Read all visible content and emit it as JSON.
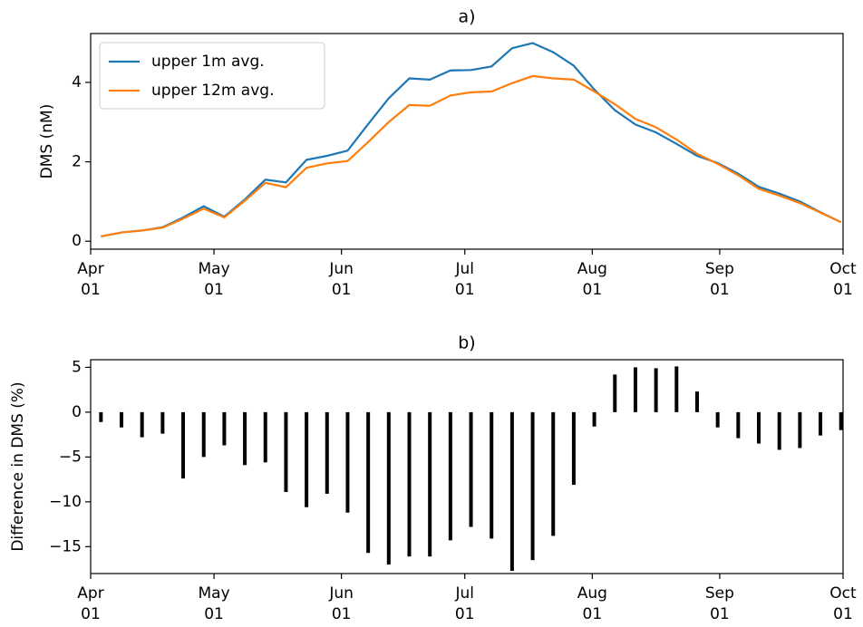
{
  "chart_data": [
    {
      "type": "line",
      "title": "a)",
      "ylabel": "DMS (nM)",
      "x": [
        2.5,
        7.5,
        12.5,
        17.5,
        22.5,
        27.5,
        32.5,
        37.5,
        42.5,
        47.5,
        52.5,
        57.5,
        62.5,
        67.5,
        72.5,
        77.5,
        82.5,
        87.5,
        92.5,
        97.5,
        102.5,
        107.5,
        112.5,
        117.5,
        122.5,
        127.5,
        132.5,
        137.5,
        142.5,
        147.5,
        152.5,
        157.5,
        162.5,
        167.5,
        172.5,
        177.5,
        182.5
      ],
      "series": [
        {
          "name": "upper 1m avg.",
          "color": "#1f77b4",
          "values": [
            0.12,
            0.22,
            0.27,
            0.35,
            0.6,
            0.88,
            0.62,
            1.05,
            1.55,
            1.48,
            2.05,
            2.15,
            2.28,
            2.95,
            3.6,
            4.1,
            4.07,
            4.3,
            4.31,
            4.4,
            4.86,
            4.99,
            4.76,
            4.42,
            3.82,
            3.3,
            2.94,
            2.74,
            2.45,
            2.15,
            1.97,
            1.7,
            1.37,
            1.2,
            1.0,
            0.73,
            0.48
          ]
        },
        {
          "name": "upper 12m avg.",
          "color": "#ff7f0e",
          "values": [
            0.12,
            0.22,
            0.27,
            0.34,
            0.57,
            0.82,
            0.6,
            1.02,
            1.47,
            1.36,
            1.85,
            1.96,
            2.02,
            2.5,
            3.0,
            3.43,
            3.41,
            3.67,
            3.75,
            3.77,
            3.98,
            4.16,
            4.1,
            4.07,
            3.77,
            3.45,
            3.08,
            2.87,
            2.56,
            2.2,
            1.95,
            1.66,
            1.32,
            1.15,
            0.96,
            0.72,
            0.48
          ]
        }
      ],
      "xlim": [
        0,
        183
      ],
      "xticks": [
        {
          "value": 0,
          "label": "Apr\n01"
        },
        {
          "value": 30,
          "label": "May\n01"
        },
        {
          "value": 61,
          "label": "Jun\n01"
        },
        {
          "value": 91,
          "label": "Jul\n01"
        },
        {
          "value": 122,
          "label": "Aug\n01"
        },
        {
          "value": 153,
          "label": "Sep\n01"
        },
        {
          "value": 183,
          "label": "Oct\n01"
        }
      ],
      "ylim": [
        -0.2,
        5.23
      ],
      "yticks": [
        0,
        2,
        4
      ],
      "legend": "upper left"
    },
    {
      "type": "bar",
      "title": "b)",
      "ylabel": "Difference in DMS (%)",
      "x": [
        2.5,
        7.5,
        12.5,
        17.5,
        22.5,
        27.5,
        32.5,
        37.5,
        42.5,
        47.5,
        52.5,
        57.5,
        62.5,
        67.5,
        72.5,
        77.5,
        82.5,
        87.5,
        92.5,
        97.5,
        102.5,
        107.5,
        112.5,
        117.5,
        122.5,
        127.5,
        132.5,
        137.5,
        142.5,
        147.5,
        152.5,
        157.5,
        162.5,
        167.5,
        172.5,
        177.5,
        182.5
      ],
      "values": [
        -1.1,
        -1.7,
        -2.8,
        -2.4,
        -7.4,
        -5.0,
        -3.7,
        -5.9,
        -5.6,
        -8.9,
        -10.6,
        -9.1,
        -11.2,
        -15.7,
        -17.0,
        -16.1,
        -16.1,
        -14.3,
        -12.8,
        -14.1,
        -17.7,
        -16.5,
        -13.8,
        -8.1,
        -1.6,
        4.2,
        5.0,
        4.9,
        5.1,
        2.3,
        -1.7,
        -2.9,
        -3.5,
        -4.2,
        -4.0,
        -2.6,
        -2.0
      ],
      "color": "#000000",
      "xlim": [
        0,
        183
      ],
      "xticks": [
        {
          "value": 0,
          "label": "Apr\n01"
        },
        {
          "value": 30,
          "label": "May\n01"
        },
        {
          "value": 61,
          "label": "Jun\n01"
        },
        {
          "value": 91,
          "label": "Jul\n01"
        },
        {
          "value": 122,
          "label": "Aug\n01"
        },
        {
          "value": 153,
          "label": "Sep\n01"
        },
        {
          "value": 183,
          "label": "Oct\n01"
        }
      ],
      "ylim": [
        -18.0,
        5.85
      ],
      "yticks": [
        {
          "value": -15,
          "label": "−15"
        },
        {
          "value": -10,
          "label": "−10"
        },
        {
          "value": -5,
          "label": "−5"
        },
        0,
        5
      ]
    }
  ]
}
